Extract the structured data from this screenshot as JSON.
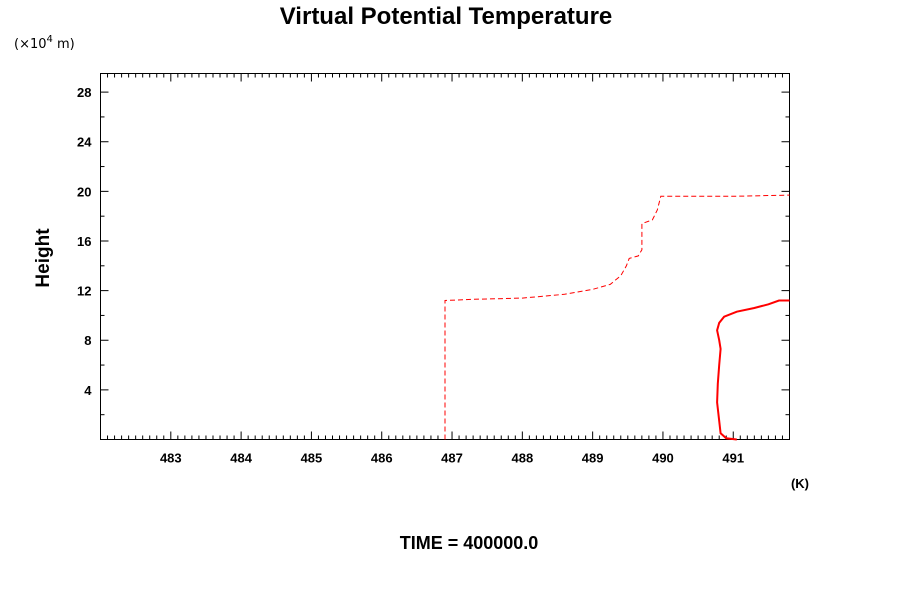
{
  "chart_data": {
    "type": "line",
    "title": "Virtual Potential Temperature",
    "ylabel": "Height",
    "y_unit": "(×10",
    "y_unit_exp": "4",
    "y_unit_suffix": " m)",
    "x_unit": "(K)",
    "footer": "TIME = 400000.0",
    "xlim": [
      482.0,
      491.8
    ],
    "ylim": [
      0.0,
      29.5
    ],
    "x_ticks": [
      483,
      484,
      485,
      486,
      487,
      488,
      489,
      490,
      491
    ],
    "y_ticks": [
      4,
      8,
      12,
      16,
      20,
      24,
      28
    ],
    "grid": false,
    "series": [
      {
        "style": "solid",
        "color": "#ff0000",
        "points": [
          [
            491.05,
            0.0
          ],
          [
            490.9,
            0.1
          ],
          [
            490.82,
            0.5
          ],
          [
            490.8,
            1.5
          ],
          [
            490.77,
            3.0
          ],
          [
            490.78,
            4.5
          ],
          [
            490.8,
            6.0
          ],
          [
            490.82,
            7.3
          ],
          [
            490.8,
            8.0
          ],
          [
            490.77,
            8.8
          ],
          [
            490.8,
            9.4
          ],
          [
            490.87,
            9.9
          ],
          [
            491.05,
            10.3
          ],
          [
            491.3,
            10.6
          ],
          [
            491.5,
            10.9
          ],
          [
            491.65,
            11.2
          ],
          [
            491.8,
            11.2
          ]
        ]
      },
      {
        "style": "dashed",
        "color": "#ff0000",
        "points": [
          [
            486.9,
            0.0
          ],
          [
            486.9,
            11.2
          ],
          [
            487.3,
            11.3
          ],
          [
            488.0,
            11.4
          ],
          [
            488.6,
            11.7
          ],
          [
            489.0,
            12.1
          ],
          [
            489.25,
            12.5
          ],
          [
            489.4,
            13.2
          ],
          [
            489.48,
            14.0
          ],
          [
            489.52,
            14.6
          ],
          [
            489.65,
            14.8
          ],
          [
            489.7,
            15.3
          ],
          [
            489.7,
            17.4
          ],
          [
            489.85,
            17.7
          ],
          [
            489.92,
            18.5
          ],
          [
            489.97,
            19.6
          ],
          [
            490.3,
            19.6
          ],
          [
            491.0,
            19.6
          ],
          [
            491.8,
            19.7
          ]
        ]
      }
    ]
  }
}
